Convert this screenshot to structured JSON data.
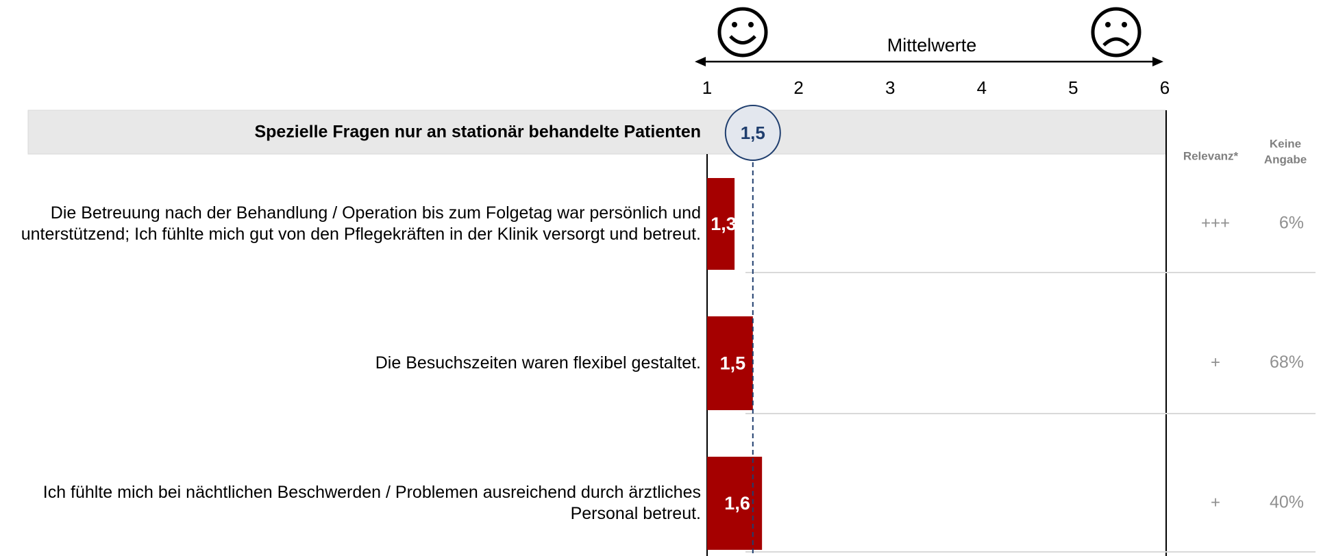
{
  "chart_data": {
    "type": "bar",
    "section_title": "Spezielle Fragen nur an stationär behandelte Patienten",
    "axis_label": "Mittelwerte",
    "categories": [
      "Die Betreuung nach der Behandlung / Operation bis zum Folgetag war persönlich und unterstützend; Ich fühlte mich gut von den Pflegekräften in der Klinik versorgt und betreut.",
      "Die Besuchszeiten waren flexibel gestaltet.",
      "Ich fühlte mich bei nächtlichen Beschwerden / Problemen ausreichend durch ärztliches Personal betreut."
    ],
    "values": [
      1.3,
      1.5,
      1.6
    ],
    "value_labels": [
      "1,3",
      "1,5",
      "1,6"
    ],
    "color": "#a50000",
    "mean": 1.5,
    "mean_label": "1,5",
    "xlim": [
      1,
      6
    ],
    "xticks": [
      1,
      2,
      3,
      4,
      5,
      6
    ],
    "relevance_header": "Relevanz*",
    "relevance": [
      "+++",
      "+",
      "+"
    ],
    "no_answer_header": [
      "Keine",
      "Angabe"
    ],
    "no_answer": {
      "values": [
        6,
        68,
        40
      ],
      "value_labels": [
        "6%",
        "68%",
        "40%"
      ]
    }
  }
}
